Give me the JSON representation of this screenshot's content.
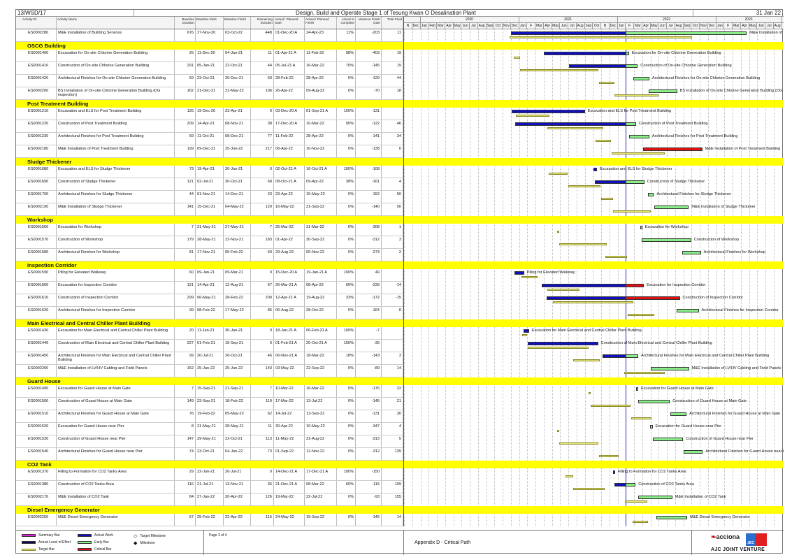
{
  "header": {
    "ref": "13/WSD/17",
    "title": "Design, Build and Operate Stage 1 of Tesung Kwan O Desalination Plant",
    "data_date": "31 Jan 22"
  },
  "columns": [
    "Activity ID",
    "Activity Name",
    "Baseline Duration",
    "Baseline Start",
    "Baseline Finish",
    "Remaining Duration",
    "Actual / Planned Start",
    "Actual / Planned Finish",
    "Actual % Complete",
    "Variance Finish Date",
    "Total Float"
  ],
  "timeline": {
    "years": [
      {
        "label": "",
        "months": [
          "N",
          "Dec"
        ]
      },
      {
        "label": "2020",
        "months": [
          "Jan",
          "Feb",
          "Mar",
          "Apr",
          "May",
          "Jun",
          "Jul",
          "Aug",
          "Sep",
          "Oct",
          "Nov",
          "Dec"
        ]
      },
      {
        "label": "2021",
        "months": [
          "Jan",
          "F",
          "Mar",
          "Apr",
          "May",
          "Jun",
          "Jul",
          "Aug",
          "Sep",
          "Oct",
          "N",
          "Dec"
        ]
      },
      {
        "label": "2022",
        "months": [
          "Jan",
          "F",
          "Mar",
          "Apr",
          "May",
          "Jun",
          "Jul",
          "Aug",
          "Sep",
          "Oct",
          "Nov",
          "Dec"
        ]
      },
      {
        "label": "2023",
        "months": [
          "Jan",
          "F",
          "Mar",
          "Apr",
          "May",
          "Jun",
          "Jul",
          "Aug"
        ]
      }
    ],
    "start": "01-Nov-19",
    "data_date": "31-Jan-22"
  },
  "colors": {
    "actual": "#1010c0",
    "early": "#88ee88",
    "critical": "#e01010",
    "target": "#e8e86a",
    "band": "#ffff00",
    "summary": "#e020e0",
    "level_of_effort": "#0a0a60"
  },
  "sections": [
    {
      "title": "",
      "activities": [
        {
          "id": "ES0002280",
          "name": "M&E Installation of Building Services",
          "bd": "676",
          "bs": "27-Nov-20",
          "bf": "03-Oct-22",
          "rd": "448",
          "as": "01-Dec-20 A",
          "af": "24-Apr-23",
          "pc": "11%",
          "vf": "-203",
          "tf": "11"
        }
      ]
    },
    {
      "title": "OSCG Building",
      "activities": [
        {
          "id": "ES0001400",
          "name": "Excavation for On-site Chlorine Generation Building",
          "bd": "25",
          "bs": "11-Dec-20",
          "bf": "04-Jan-21",
          "rd": "11",
          "as": "01-Apr-21 A",
          "af": "11-Feb-22",
          "pc": "98%",
          "vf": "-403",
          "tf": "19"
        },
        {
          "id": "ES0001410",
          "name": "Construction of On-site Chlorine Generation Building",
          "bd": "291",
          "bs": "05-Jan-21",
          "bf": "22-Oct-21",
          "rd": "44",
          "as": "05-Jul-21 A",
          "af": "16-Mar-22",
          "pc": "70%",
          "vf": "-145",
          "tf": "19"
        },
        {
          "id": "ES0001420",
          "name": "Architectural Finishes for On-site Chlorine Generation Building",
          "bd": "59",
          "bs": "23-Oct-21",
          "bf": "20-Dec-21",
          "rd": "60",
          "as": "28-Feb-22",
          "af": "28-Apr-22",
          "pc": "0%",
          "vf": "-129",
          "tf": "44"
        },
        {
          "id": "ES0002200",
          "name": "BS Installation of On-site Chlorine Generation Building (DG inspection)",
          "bd": "162",
          "bs": "21-Dec-21",
          "bf": "31-May-22",
          "rd": "106",
          "as": "26-Apr-22",
          "af": "09-Aug-22",
          "pc": "0%",
          "vf": "-70",
          "tf": "18"
        }
      ]
    },
    {
      "title": "Post Treatment Building",
      "activities": [
        {
          "id": "ES0001210",
          "name": "Excavation and ELS for Post Treatment Building",
          "bd": "126",
          "bs": "19-Dec-20",
          "bf": "23-Apr-21",
          "rd": "0",
          "as": "03-Dec-20 A",
          "af": "01-Sep-21 A",
          "pc": "100%",
          "vf": "-131",
          "tf": ""
        },
        {
          "id": "ES0001220",
          "name": "Construction of Post Treatment Building",
          "bd": "209",
          "bs": "14-Apr-21",
          "bf": "08-Nov-21",
          "rd": "38",
          "as": "17-Dec-20 A",
          "af": "10-Mar-22",
          "pc": "90%",
          "vf": "-122",
          "tf": "46"
        },
        {
          "id": "ES0001230",
          "name": "Architectural Finishes for Post Treatment Building",
          "bd": "59",
          "bs": "11-Oct-21",
          "bf": "08-Dec-21",
          "rd": "77",
          "as": "11-Feb-22",
          "af": "28-Apr-22",
          "pc": "0%",
          "vf": "-141",
          "tf": "34"
        },
        {
          "id": "ES0002180",
          "name": "M&E Installation of Post Treatment Building",
          "bd": "199",
          "bs": "09-Dec-21",
          "bf": "25-Jun-22",
          "rd": "217",
          "as": "06-Apr-22",
          "af": "10-Nov-22",
          "pc": "0%",
          "vf": "-138",
          "tf": "0"
        }
      ]
    },
    {
      "title": "Sludge Thickener",
      "activities": [
        {
          "id": "ES0001680",
          "name": "Excavation and ELS for Sludge Thickener",
          "bd": "73",
          "bs": "19-Apr-21",
          "bf": "30-Jun-21",
          "rd": "0",
          "as": "02-Oct-21 A",
          "af": "16-Oct-21 A",
          "pc": "100%",
          "vf": "-108",
          "tf": ""
        },
        {
          "id": "ES0001690",
          "name": "Construction of Sludge Thickener",
          "bd": "121",
          "bs": "02-Jul-21",
          "bf": "30-Oct-21",
          "rd": "68",
          "as": "08-Oct-21 A",
          "af": "09-Apr-22",
          "pc": "38%",
          "vf": "-161",
          "tf": "4"
        },
        {
          "id": "ES0001700",
          "name": "Architectural Finishes for Sludge Thickener",
          "bd": "44",
          "bs": "01-Nov-21",
          "bf": "14-Dec-21",
          "rd": "23",
          "as": "23-Apr-22",
          "af": "15-May-22",
          "pc": "0%",
          "vf": "-152",
          "tf": "50"
        },
        {
          "id": "ES0002190",
          "name": "M&E Installation of Sludge Thickener",
          "bd": "141",
          "bs": "15-Dec-21",
          "bf": "04-May-22",
          "rd": "129",
          "as": "16-May-22",
          "af": "21-Sep-22",
          "pc": "0%",
          "vf": "-140",
          "tf": "50"
        }
      ]
    },
    {
      "title": "Workshop",
      "activities": [
        {
          "id": "ES0001560",
          "name": "Excavation for Workshop",
          "bd": "7",
          "bs": "21-May-21",
          "bf": "27-May-21",
          "rd": "7",
          "as": "25-Mar-22",
          "af": "31-Mar-22",
          "pc": "0%",
          "vf": "-308",
          "tf": "1"
        },
        {
          "id": "ES0001570",
          "name": "Construction of Workshop",
          "bd": "179",
          "bs": "28-May-21",
          "bf": "22-Nov-21",
          "rd": "183",
          "as": "01-Apr-22",
          "af": "30-Sep-22",
          "pc": "0%",
          "vf": "-312",
          "tf": "3"
        },
        {
          "id": "ES0001580",
          "name": "Architectural Finishes for Workshop",
          "bd": "81",
          "bs": "17-Nov-21",
          "bf": "05-Feb-22",
          "rd": "69",
          "as": "29-Aug-22",
          "af": "05-Nov-22",
          "pc": "0%",
          "vf": "-273",
          "tf": "2"
        }
      ]
    },
    {
      "title": "Inspection Corridor",
      "activities": [
        {
          "id": "ES0001590",
          "name": "Piling for Elevated Walkway",
          "bd": "60",
          "bs": "09-Jan-21",
          "bf": "09-Mar-21",
          "rd": "0",
          "as": "15-Dec-20 A",
          "af": "19-Jan-21 A",
          "pc": "100%",
          "vf": "49",
          "tf": ""
        },
        {
          "id": "ES0001600",
          "name": "Excavation for Inspection Corridor",
          "bd": "121",
          "bs": "14-Apr-21",
          "bf": "12-Aug-21",
          "rd": "67",
          "as": "26-Mar-21 A",
          "af": "08-Apr-22",
          "pc": "60%",
          "vf": "-239",
          "tf": "-14"
        },
        {
          "id": "ES0001610",
          "name": "Construction of Inspection Corridor",
          "bd": "299",
          "bs": "06-May-21",
          "bf": "28-Feb-22",
          "rd": "200",
          "as": "12-Apr-21 A",
          "af": "19-Aug-22",
          "pc": "33%",
          "vf": "-172",
          "tf": "-15"
        },
        {
          "id": "ES0001620",
          "name": "Architectural Finishes for Inspection Corridor",
          "bd": "99",
          "bs": "08-Feb-22",
          "bf": "17-May-22",
          "rd": "85",
          "as": "06-Aug-22",
          "af": "28-Oct-22",
          "pc": "0%",
          "vf": "-164",
          "tf": "8"
        }
      ]
    },
    {
      "title": "Main Electrical and Central Chiller Plant Building",
      "activities": [
        {
          "id": "ES0001430",
          "name": "Excavation for Main Electrical and Central Chiller Plant Building",
          "bd": "20",
          "bs": "11-Jan-21",
          "bf": "30-Jan-21",
          "rd": "0",
          "as": "18-Jan-21 A",
          "af": "06-Feb-21 A",
          "pc": "100%",
          "vf": "-7",
          "tf": ""
        },
        {
          "id": "ES0001440",
          "name": "Construction of Main Electrical and Central Chiller Plant Building",
          "bd": "227",
          "bs": "01-Feb-21",
          "bf": "15-Sep-21",
          "rd": "0",
          "as": "01-Feb-21 A",
          "af": "20-Oct-21 A",
          "pc": "100%",
          "vf": "-35",
          "tf": ""
        },
        {
          "id": "ES0001450",
          "name": "Architectural Finishes for Main Electrical and Central Chiller Plant Building",
          "bd": "99",
          "bs": "20-Jul-21",
          "bf": "26-Oct-21",
          "rd": "46",
          "as": "06-Nov-21 A",
          "af": "18-Mar-22",
          "pc": "18%",
          "vf": "-143",
          "tf": "3"
        },
        {
          "id": "ES0002260",
          "name": "M&E Installation of LV/HV Cabling and Field Panels",
          "bd": "152",
          "bs": "25-Jan-22",
          "bf": "25-Jun-22",
          "rd": "143",
          "as": "03-May-22",
          "af": "22-Sep-22",
          "pc": "0%",
          "vf": "-89",
          "tf": "14"
        }
      ]
    },
    {
      "title": "Guard House",
      "activities": [
        {
          "id": "ES0001490",
          "name": "Excavation for Guard House at Main Gate",
          "bd": "7",
          "bs": "15-Sep-21",
          "bf": "21-Sep-21",
          "rd": "7",
          "as": "10-Mar-22",
          "af": "16-Mar-22",
          "pc": "0%",
          "vf": "-176",
          "tf": "22"
        },
        {
          "id": "ES0001500",
          "name": "Construction of Guard House at Main Gate",
          "bd": "149",
          "bs": "23-Sep-21",
          "bf": "18-Feb-22",
          "rd": "119",
          "as": "17-Mar-22",
          "af": "13-Jul-22",
          "pc": "0%",
          "vf": "-145",
          "tf": "21"
        },
        {
          "id": "ES0001510",
          "name": "Architectural Finishes for Guard House at Main Gate",
          "bd": "76",
          "bs": "19-Feb-22",
          "bf": "05-May-22",
          "rd": "62",
          "as": "14-Jul-22",
          "af": "13-Sep-22",
          "pc": "0%",
          "vf": "-131",
          "tf": "30"
        },
        {
          "id": "ES0001520",
          "name": "Excavation for Guard House near Pier",
          "bd": "8",
          "bs": "21-May-21",
          "bf": "28-May-21",
          "rd": "11",
          "as": "30-Apr-22",
          "af": "10-May-22",
          "pc": "0%",
          "vf": "-347",
          "tf": "4"
        },
        {
          "id": "ES0001530",
          "name": "Construction of Guard House near Pier",
          "bd": "147",
          "bs": "29-May-21",
          "bf": "22-Oct-21",
          "rd": "113",
          "as": "11-May-22",
          "af": "31-Aug-22",
          "pc": "0%",
          "vf": "-313",
          "tf": "5"
        },
        {
          "id": "ES0001540",
          "name": "Architectural Finishes for Guard House near Pier",
          "bd": "74",
          "bs": "23-Oct-21",
          "bf": "04-Jan-22",
          "rd": "73",
          "as": "01-Sep-22",
          "af": "12-Nov-22",
          "pc": "0%",
          "vf": "-312",
          "tf": "139"
        }
      ]
    },
    {
      "title": "CO2 Tank",
      "activities": [
        {
          "id": "ES0001370",
          "name": "Filling to Formation for CO2 Tanks Area",
          "bd": "29",
          "bs": "22-Jun-21",
          "bf": "20-Jul-21",
          "rd": "0",
          "as": "14-Dec-21 A",
          "af": "17-Dec-21 A",
          "pc": "100%",
          "vf": "-150",
          "tf": ""
        },
        {
          "id": "ES0001380",
          "name": "Construction of CO2 Tanks Area",
          "bd": "116",
          "bs": "21-Jul-21",
          "bf": "13-Nov-21",
          "rd": "36",
          "as": "21-Dec-21 A",
          "af": "08-Mar-22",
          "pc": "60%",
          "vf": "-115",
          "tf": "109"
        },
        {
          "id": "ES0002170",
          "name": "M&E Installation of CO2 Tank",
          "bd": "84",
          "bs": "27-Jan-22",
          "bf": "20-Apr-22",
          "rd": "126",
          "as": "19-Mar-22",
          "af": "22-Jul-22",
          "pc": "0%",
          "vf": "-93",
          "tf": "155"
        }
      ]
    },
    {
      "title": "Diesel Emergency Generator",
      "activities": [
        {
          "id": "ES0002250",
          "name": "M&E Diesel Emergency Generator",
          "bd": "57",
          "bs": "25-Feb-22",
          "bf": "22-Apr-22",
          "rd": "115",
          "as": "24-May-22",
          "af": "15-Sep-22",
          "pc": "0%",
          "vf": "-146",
          "tf": "14"
        }
      ]
    }
  ],
  "legend": [
    {
      "label": "Summary Bar",
      "kind": "summary"
    },
    {
      "label": "Actual Level of Effort",
      "kind": "loe"
    },
    {
      "label": "Target Bar",
      "kind": "target"
    },
    {
      "label": "Actual Work",
      "kind": "actual"
    },
    {
      "label": "Early Bar",
      "kind": "early"
    },
    {
      "label": "Critical Bar",
      "kind": "critical"
    },
    {
      "label": "Target Milestone",
      "kind": "tmile"
    },
    {
      "label": "Milestone",
      "kind": "mile"
    }
  ],
  "footer": {
    "page": "Page 3 of 4",
    "appendix": "Appendix D - Critical Path",
    "logo": {
      "brand": "acciona",
      "partner": "JEC",
      "jv": "AJC JOINT VENTURE"
    }
  }
}
